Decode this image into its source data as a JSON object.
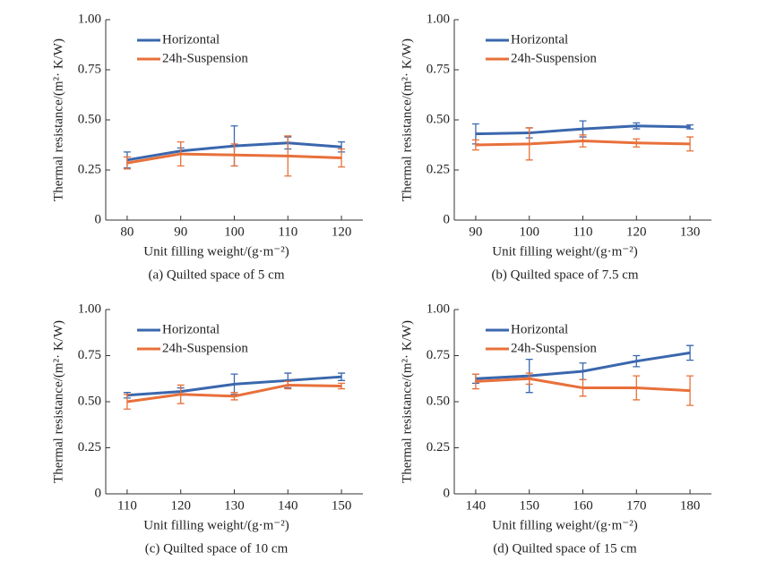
{
  "chart_data": [
    {
      "type": "line",
      "caption": "(a) Quilted space of 5 cm",
      "x_label": "Unit filling weight/(g·m⁻²)",
      "y_label": "Thermal resistance/(m²· K/W)",
      "x": [
        80,
        90,
        100,
        110,
        120
      ],
      "xlim": [
        76,
        124
      ],
      "xticks": [
        80,
        90,
        100,
        110,
        120
      ],
      "ylim": [
        0,
        1
      ],
      "yticks": [
        0,
        0.25,
        {
          "value": 0.5,
          "label": "0.50"
        },
        0.75,
        {
          "value": 1,
          "label": "1.00"
        }
      ],
      "legend": "upper left",
      "series": [
        {
          "name": "Horizontal",
          "color": "#3a67ad",
          "values": [
            0.3,
            0.345,
            0.37,
            0.385,
            0.365
          ],
          "errors": [
            0.04,
            0.015,
            0.1,
            0.03,
            0.025
          ]
        },
        {
          "name": "24h-Suspension",
          "color": "#e8703a",
          "values": [
            0.285,
            0.33,
            0.325,
            0.32,
            0.31
          ],
          "errors": [
            0.03,
            0.06,
            0.055,
            0.1,
            0.045
          ]
        }
      ]
    },
    {
      "type": "line",
      "caption": "(b) Quilted space of 7.5 cm",
      "x_label": "Unit filling weight/(g·m⁻²)",
      "y_label": "Thermal resistance/(m²· K/W)",
      "x": [
        90,
        100,
        110,
        120,
        130
      ],
      "xlim": [
        86,
        134
      ],
      "xticks": [
        90,
        100,
        110,
        120,
        130
      ],
      "ylim": [
        0,
        1
      ],
      "yticks": [
        0,
        0.25,
        {
          "value": 0.5,
          "label": "0.50"
        },
        0.75,
        {
          "value": 1,
          "label": "1.00"
        }
      ],
      "legend": "upper left",
      "series": [
        {
          "name": "Horizontal",
          "color": "#3a67ad",
          "values": [
            0.43,
            0.435,
            0.455,
            0.47,
            0.465
          ],
          "errors": [
            0.05,
            0.025,
            0.04,
            0.015,
            0.01
          ]
        },
        {
          "name": "24h-Suspension",
          "color": "#e8703a",
          "values": [
            0.375,
            0.38,
            0.395,
            0.385,
            0.38
          ],
          "errors": [
            0.025,
            0.08,
            0.03,
            0.02,
            0.035
          ]
        }
      ]
    },
    {
      "type": "line",
      "caption": "(c) Quilted space of 10 cm",
      "x_label": "Unit filling weight/(g·m⁻²)",
      "y_label": "Thermal resistance/(m²· K/W)",
      "x": [
        110,
        120,
        130,
        140,
        150
      ],
      "xlim": [
        106,
        154
      ],
      "xticks": [
        110,
        120,
        130,
        140,
        150
      ],
      "ylim": [
        0,
        1
      ],
      "yticks": [
        0,
        0.25,
        {
          "value": 0.5,
          "label": "0.50"
        },
        0.75,
        {
          "value": 1,
          "label": "1.00"
        }
      ],
      "legend": "upper left",
      "series": [
        {
          "name": "Horizontal",
          "color": "#3a67ad",
          "values": [
            0.535,
            0.555,
            0.595,
            0.615,
            0.635
          ],
          "errors": [
            0.015,
            0.02,
            0.055,
            0.04,
            0.02
          ]
        },
        {
          "name": "24h-Suspension",
          "color": "#e8703a",
          "values": [
            0.5,
            0.54,
            0.53,
            0.59,
            0.585
          ],
          "errors": [
            0.04,
            0.05,
            0.02,
            0.02,
            0.015
          ]
        }
      ]
    },
    {
      "type": "line",
      "caption": "(d) Quilted space of 15 cm",
      "x_label": "Unit filling weight/(g·m⁻²)",
      "y_label": "Thermal resistance/(m²· K/W)",
      "x": [
        140,
        150,
        160,
        170,
        180
      ],
      "xlim": [
        136,
        184
      ],
      "xticks": [
        140,
        150,
        160,
        170,
        180
      ],
      "ylim": [
        0,
        1
      ],
      "yticks": [
        0,
        0.25,
        {
          "value": 0.5,
          "label": "0.50"
        },
        0.75,
        {
          "value": 1,
          "label": "1.00"
        }
      ],
      "legend": "upper left",
      "series": [
        {
          "name": "Horizontal",
          "color": "#3a67ad",
          "values": [
            0.625,
            0.64,
            0.665,
            0.72,
            0.765
          ],
          "errors": [
            0.025,
            0.09,
            0.045,
            0.03,
            0.04
          ]
        },
        {
          "name": "24h-Suspension",
          "color": "#e8703a",
          "values": [
            0.61,
            0.625,
            0.575,
            0.575,
            0.56
          ],
          "errors": [
            0.04,
            0.03,
            0.045,
            0.065,
            0.08
          ]
        }
      ]
    }
  ]
}
